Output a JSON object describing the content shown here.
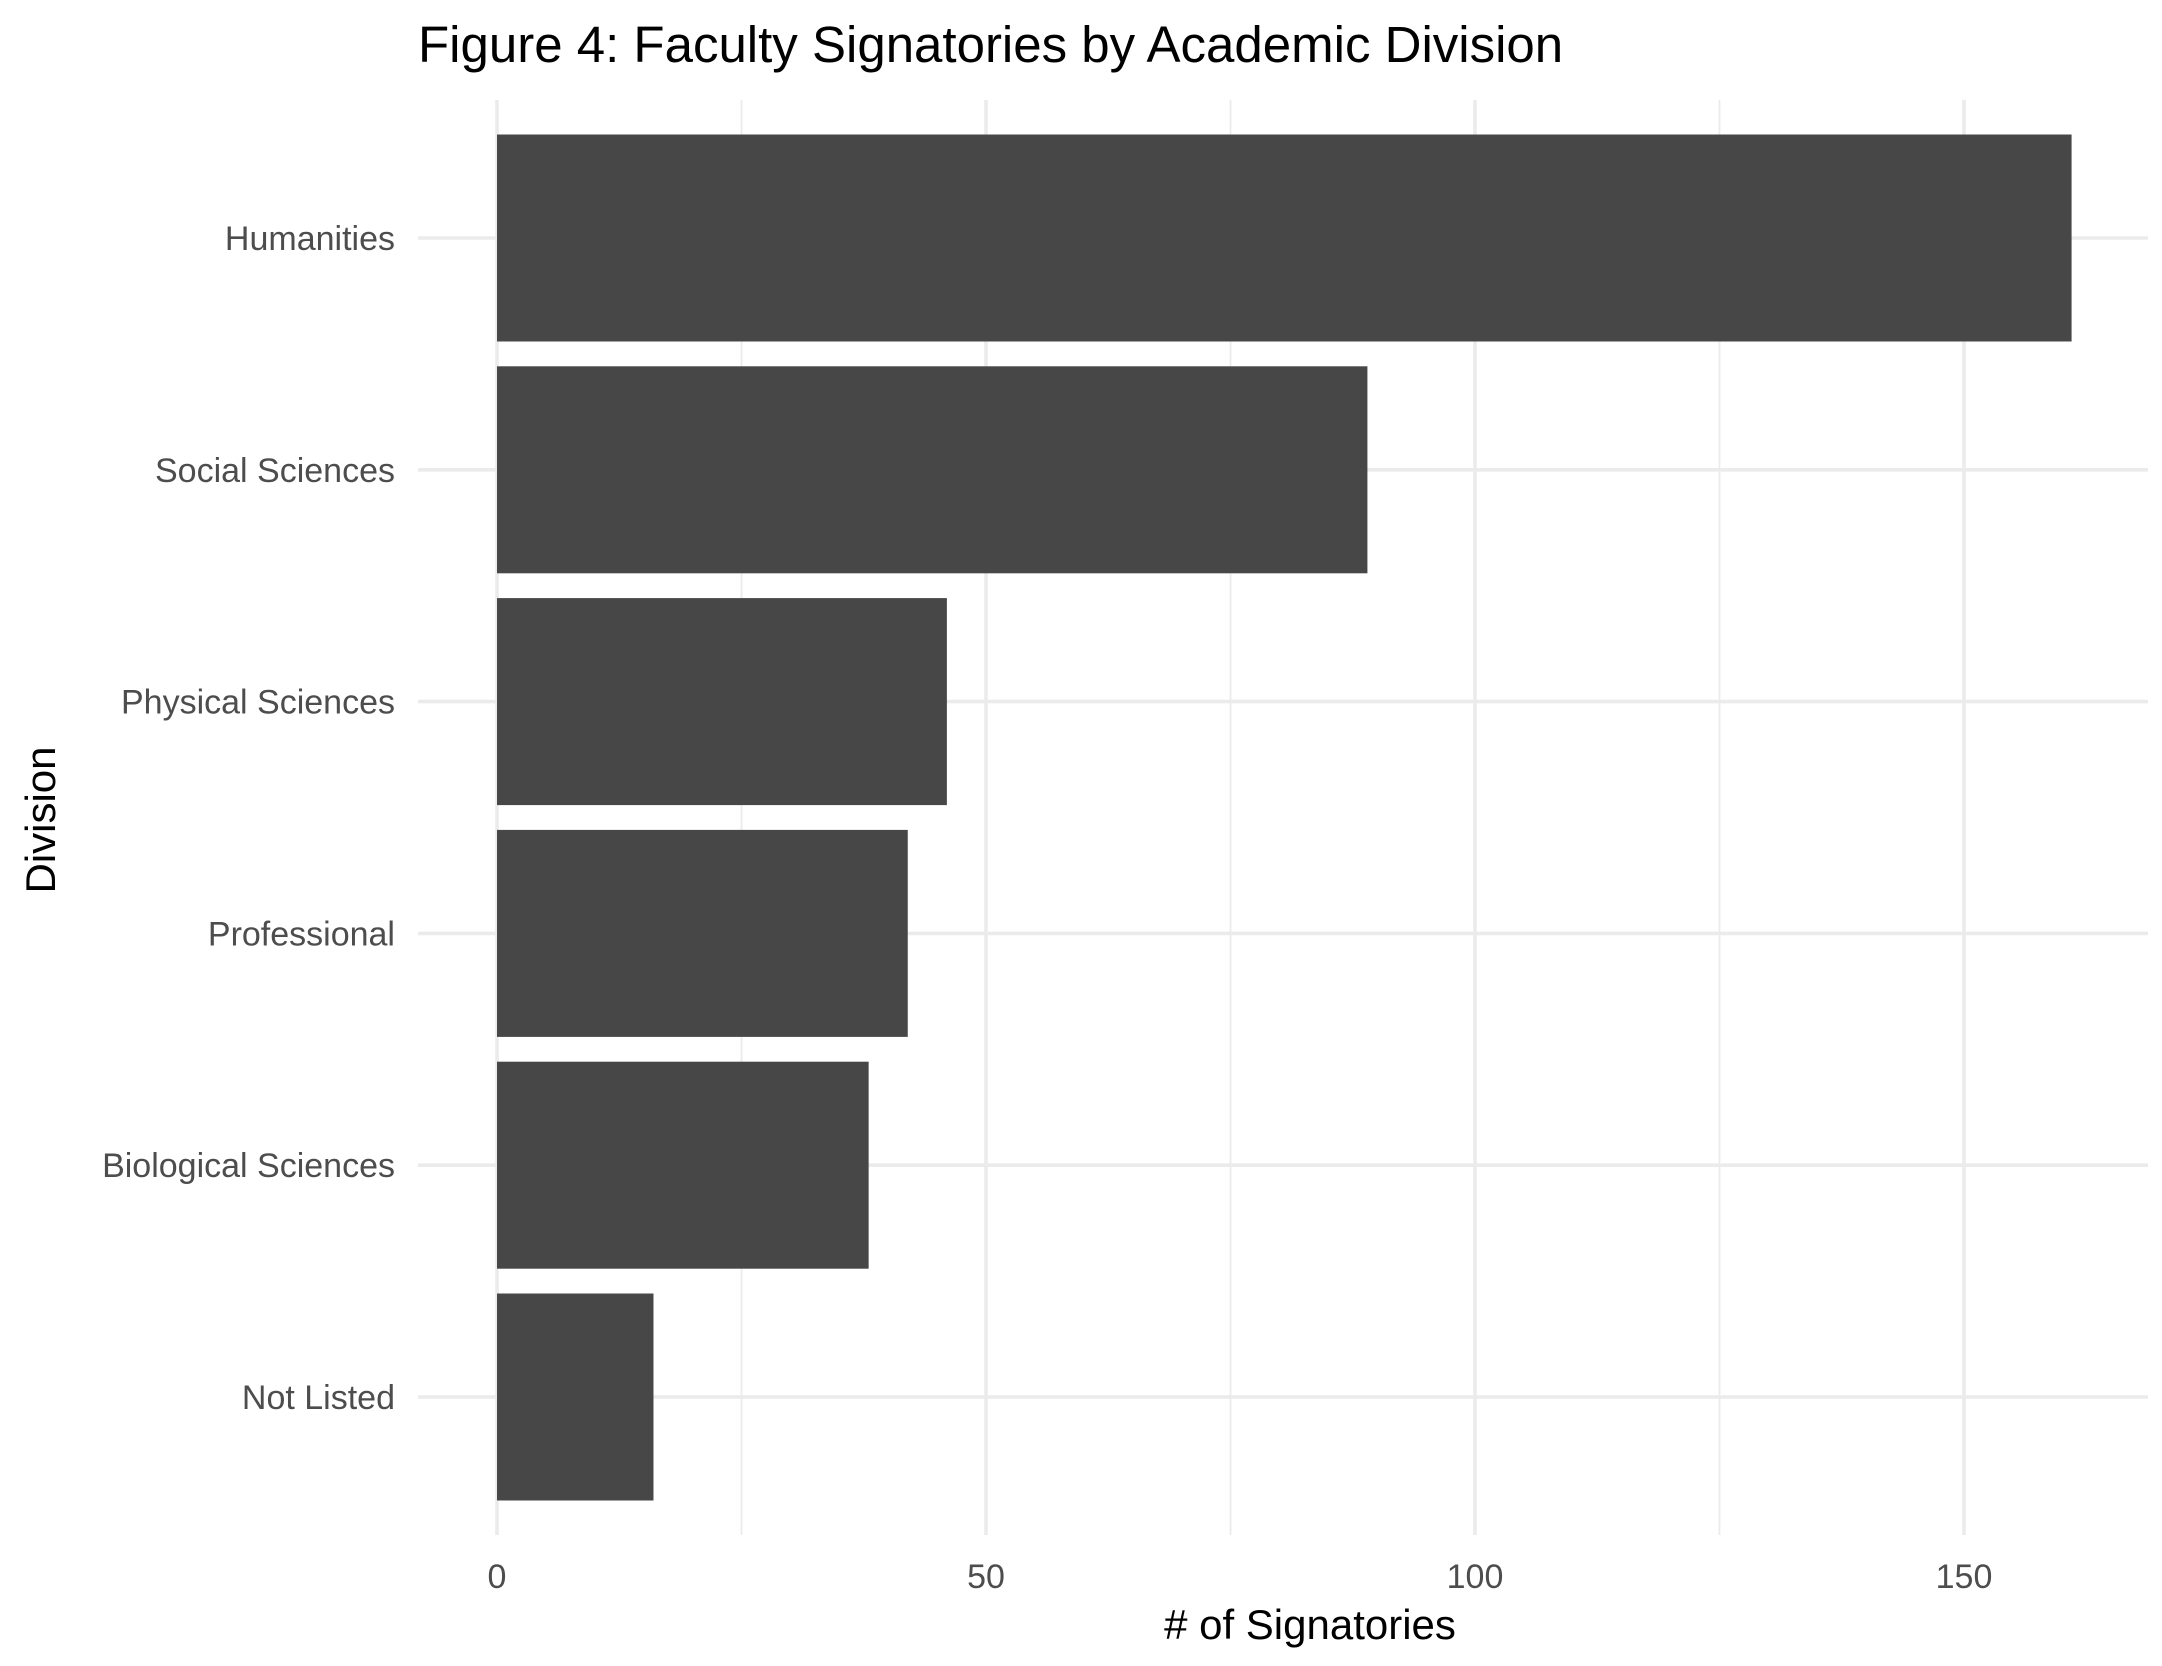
{
  "chart_data": {
    "type": "bar",
    "orientation": "horizontal",
    "title": "Figure 4: Faculty Signatories by Academic Division",
    "xlabel": "# of Signatories",
    "ylabel": "Division",
    "categories": [
      "Humanities",
      "Social Sciences",
      "Physical Sciences",
      "Professional",
      "Biological Sciences",
      "Not Listed"
    ],
    "values": [
      161,
      89,
      46,
      42,
      38,
      16
    ],
    "xlim": [
      0,
      168
    ],
    "xticks": [
      0,
      50,
      100,
      150
    ],
    "xtick_labels": [
      "0",
      "50",
      "100",
      "150"
    ],
    "grid": true,
    "bar_color": "#474747",
    "grid_color": "#ebebeb",
    "legend": "none"
  }
}
